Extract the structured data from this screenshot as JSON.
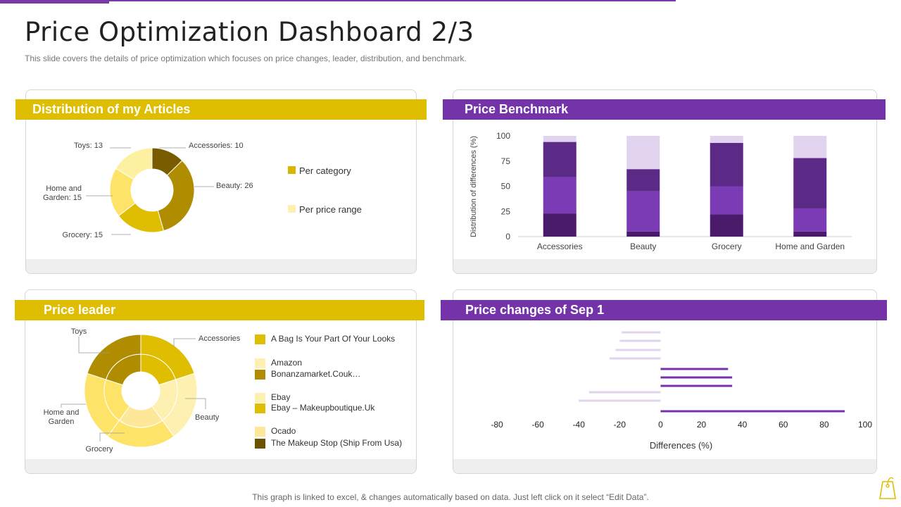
{
  "header": {
    "title": "Price Optimization Dashboard 2/3",
    "subtitle": "This slide covers the details of price optimization which focuses on price changes, leader, distribution, and benchmark."
  },
  "footer": {
    "note": "This graph is linked to excel, & changes automatically based on data. Just left click on it select “Edit Data”."
  },
  "panels": {
    "distribution": {
      "title": "Distribution of my Articles"
    },
    "benchmark": {
      "title": "Price Benchmark"
    },
    "leader": {
      "title": "Price leader"
    },
    "changes": {
      "title": "Price changes of Sep 1"
    }
  },
  "colors": {
    "gold": "#dfbd00",
    "purple": "#7433a8",
    "dark_purple": "#4a1a6b",
    "mid_purple": "#5b2a86",
    "light_purple": "#e2d4ee"
  },
  "icons": [
    "price-tag-icon"
  ],
  "chart_data": [
    {
      "id": "distribution",
      "type": "pie",
      "title": "Distribution of my Articles",
      "categories": [
        "Accessories",
        "Beauty",
        "Grocery",
        "Home and Garden",
        "Toys"
      ],
      "values": [
        10,
        26,
        15,
        15,
        13
      ],
      "labels": [
        "Accessories: 10",
        "Beauty: 26",
        "Grocery: 15",
        "Home and\nGarden: 15",
        "Toys: 13"
      ],
      "colors": [
        "#7a5c00",
        "#b08c00",
        "#dfbd00",
        "#fde368",
        "#fdf0a0"
      ],
      "legend": [
        {
          "label": "Per category",
          "color": "#d8b500"
        },
        {
          "label": "Per price range",
          "color": "#fdf0b0"
        }
      ]
    },
    {
      "id": "benchmark",
      "type": "bar",
      "stacked": true,
      "title": "Price Benchmark",
      "categories": [
        "Accessories",
        "Beauty",
        "Grocery",
        "Home and Garden"
      ],
      "ylabel": "Distribution of differences (%)",
      "ylim": [
        0,
        100
      ],
      "yticks": [
        0,
        25,
        50,
        75,
        100
      ],
      "series": [
        {
          "values": [
            23,
            5,
            22,
            5
          ],
          "color": "#4a1a6b"
        },
        {
          "values": [
            36,
            40,
            28,
            23
          ],
          "color": "#7a3bb5"
        },
        {
          "values": [
            35,
            22,
            43,
            50
          ],
          "color": "#5b2a86"
        },
        {
          "values": [
            6,
            33,
            7,
            22
          ],
          "color": "#e2d4ee"
        }
      ]
    },
    {
      "id": "leader",
      "type": "pie",
      "title": "Price leader",
      "categories": [
        "Accessories",
        "Beauty",
        "Grocery",
        "Home and Garden",
        "Toys"
      ],
      "values": [
        20,
        20,
        20,
        20,
        20
      ],
      "legend": [
        {
          "label": "A Bag Is Your Part Of Your Looks",
          "color": "#dfbd00"
        },
        {
          "label": "Amazon",
          "color": "#fdf0b0"
        },
        {
          "label": "Bonanzamarket.Couk…",
          "color": "#b08c00"
        },
        {
          "label": "Ebay",
          "color": "#fdf0b0"
        },
        {
          "label": "Ebay – Makeupboutique.Uk",
          "color": "#dfbd00"
        },
        {
          "label": "Ocado",
          "color": "#fde89a"
        },
        {
          "label": "The Makeup Stop (Ship From Usa)",
          "color": "#6b5200"
        }
      ]
    },
    {
      "id": "changes",
      "type": "bar",
      "orientation": "horizontal",
      "title": "Price changes of Sep 1",
      "xlabel": "Differences (%)",
      "xlim": [
        -80,
        100
      ],
      "xticks": [
        -80,
        -60,
        -40,
        -20,
        0,
        20,
        40,
        60,
        80,
        100
      ],
      "values": [
        -19,
        -20,
        -22,
        -25,
        33,
        35,
        35,
        -35,
        -40,
        90
      ],
      "colors": {
        "negative": "#e2d4ee",
        "positive": "#7433a8"
      }
    }
  ]
}
